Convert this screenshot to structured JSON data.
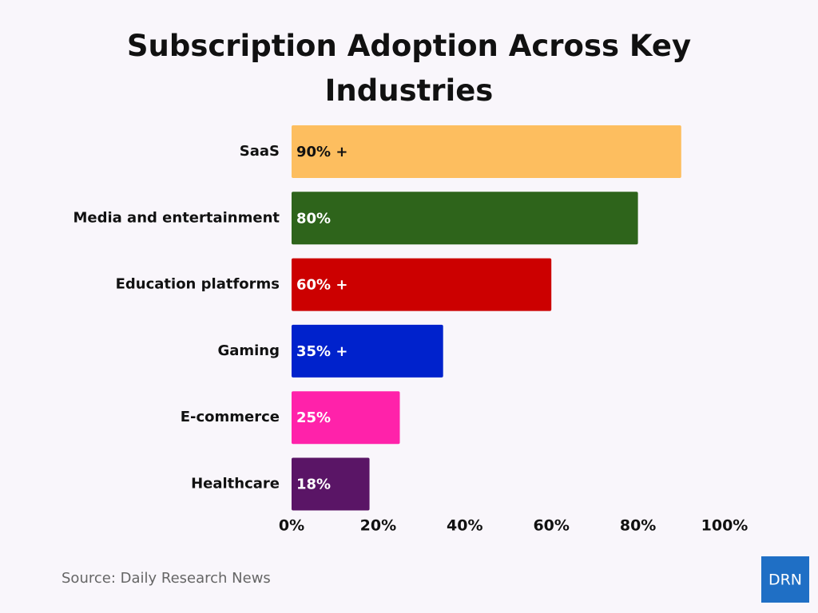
{
  "chart_data": {
    "type": "hbar",
    "title": "Subscription Adoption Across Key Industries",
    "categories": [
      "SaaS",
      "Media and entertainment",
      "Education platforms",
      "Gaming",
      "E-commerce",
      "Healthcare"
    ],
    "values": [
      90,
      80,
      60,
      35,
      25,
      18
    ],
    "value_labels": [
      "90% +",
      "80%",
      "60% +",
      "35% +",
      "25%",
      "18%"
    ],
    "colors": [
      "#fdbe5f",
      "#2e641b",
      "#cc0000",
      "#0022cc",
      "#ff22aa",
      "#5a1566"
    ],
    "xlim": [
      0,
      100
    ],
    "xticks": [
      {
        "value": 0,
        "label": "0%"
      },
      {
        "value": 20,
        "label": "20%"
      },
      {
        "value": 40,
        "label": "40%"
      },
      {
        "value": 60,
        "label": "60%"
      },
      {
        "value": 80,
        "label": "80%"
      },
      {
        "value": 100,
        "label": "100%"
      }
    ],
    "grid": false,
    "source": "Source: Daily Research News",
    "logo": "DRN"
  }
}
